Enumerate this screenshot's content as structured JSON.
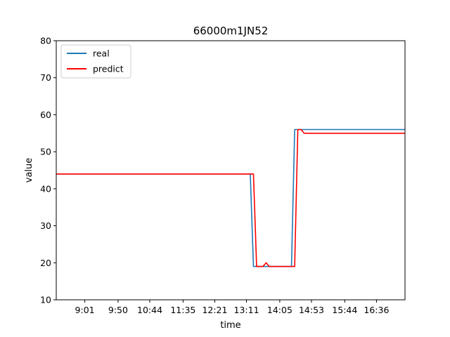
{
  "chart_data": {
    "type": "line",
    "title": "66000m1JN52",
    "xlabel": "time",
    "ylabel": "value",
    "ylim": [
      10,
      80
    ],
    "xlim": [
      0,
      110
    ],
    "yticks": [
      10,
      20,
      30,
      40,
      50,
      60,
      70,
      80
    ],
    "xticks": [
      {
        "value": 9,
        "label": "9:01"
      },
      {
        "value": 19.5,
        "label": "9:50"
      },
      {
        "value": 29.5,
        "label": "10:44"
      },
      {
        "value": 40,
        "label": "11:35"
      },
      {
        "value": 50,
        "label": "12:21"
      },
      {
        "value": 60,
        "label": "13:11"
      },
      {
        "value": 70.5,
        "label": "14:05"
      },
      {
        "value": 80.5,
        "label": "14:53"
      },
      {
        "value": 91,
        "label": "15:44"
      },
      {
        "value": 101,
        "label": "16:36"
      }
    ],
    "legend_position": "top-left",
    "series": [
      {
        "name": "real",
        "color": "#1f77b4",
        "x": [
          0,
          61.2,
          62.2,
          74.2,
          75.2,
          110
        ],
        "y": [
          44,
          44,
          19,
          19,
          56,
          56
        ]
      },
      {
        "name": "predict",
        "color": "#ff0000",
        "x": [
          0,
          62.2,
          63.2,
          65.2,
          66.2,
          67.2,
          75.2,
          76.2,
          77.2,
          78.2,
          110
        ],
        "y": [
          44,
          44,
          19,
          19,
          20,
          19,
          19,
          56,
          56,
          55,
          55
        ]
      }
    ]
  }
}
